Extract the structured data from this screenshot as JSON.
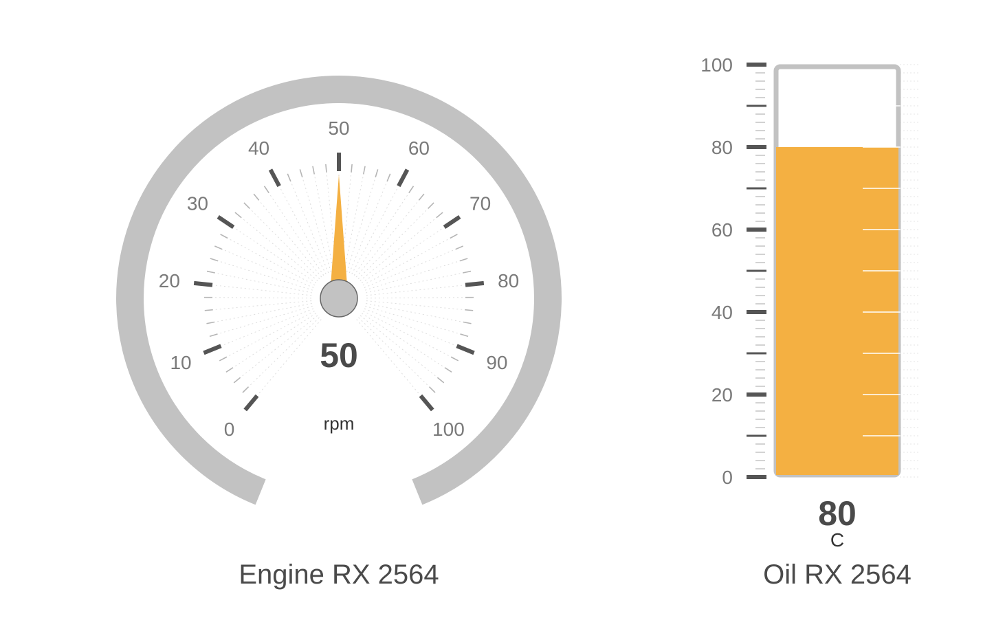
{
  "chart_data": [
    {
      "type": "radial-gauge",
      "title": "Engine RX 2564",
      "unit": "rpm",
      "value": 50,
      "value_label": "50",
      "range": [
        0,
        100
      ],
      "major_ticks": [
        "0",
        "10",
        "20",
        "30",
        "40",
        "50",
        "60",
        "70",
        "80",
        "90",
        "100"
      ],
      "minor_ticks_per_major": 4
    },
    {
      "type": "linear-gauge",
      "title": "Oil RX 2564",
      "unit": "C",
      "value": 80,
      "value_label": "80",
      "range": [
        0,
        100
      ],
      "major_ticks": [
        "0",
        "20",
        "40",
        "60",
        "80",
        "100"
      ]
    }
  ],
  "colors": {
    "fill": "#f4b042",
    "track": "#c2c2c2",
    "tick": "#555555",
    "minor_tick": "#b5b5b5",
    "label": "#7a7a7a",
    "title": "#4a4a4a",
    "hub": "#c2c2c2"
  }
}
